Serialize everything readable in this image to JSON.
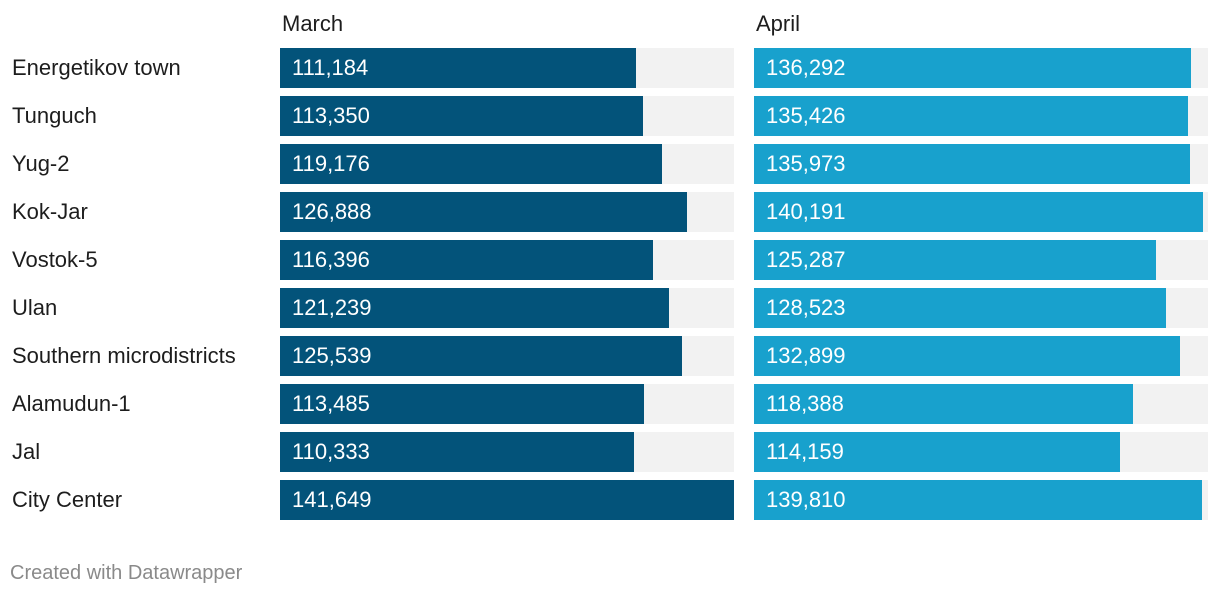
{
  "chart_data": {
    "type": "bar",
    "categories": [
      "Energetikov town",
      "Tunguch",
      "Yug-2",
      "Kok-Jar",
      "Vostok-5",
      "Ulan",
      "Southern microdistricts",
      "Alamudun-1",
      "Jal",
      "City Center"
    ],
    "series": [
      {
        "name": "March",
        "values": [
          111184,
          113350,
          119176,
          126888,
          116396,
          121239,
          125539,
          113485,
          110333,
          141649
        ],
        "labels": [
          "111,184",
          "113,350",
          "119,176",
          "126,888",
          "116,396",
          "121,239",
          "125,539",
          "113,485",
          "110,333",
          "141,649"
        ],
        "color": "#03537a"
      },
      {
        "name": "April",
        "values": [
          136292,
          135426,
          135973,
          140191,
          125287,
          128523,
          132899,
          118388,
          114159,
          139810
        ],
        "labels": [
          "136,292",
          "135,426",
          "135,973",
          "140,191",
          "125,287",
          "128,523",
          "132,899",
          "118,388",
          "114,159",
          "139,810"
        ],
        "color": "#18a1cd"
      }
    ],
    "xlim": [
      0,
      141649
    ],
    "track_color": "#f2f2f2"
  },
  "footer": {
    "credit": "Created with Datawrapper"
  }
}
